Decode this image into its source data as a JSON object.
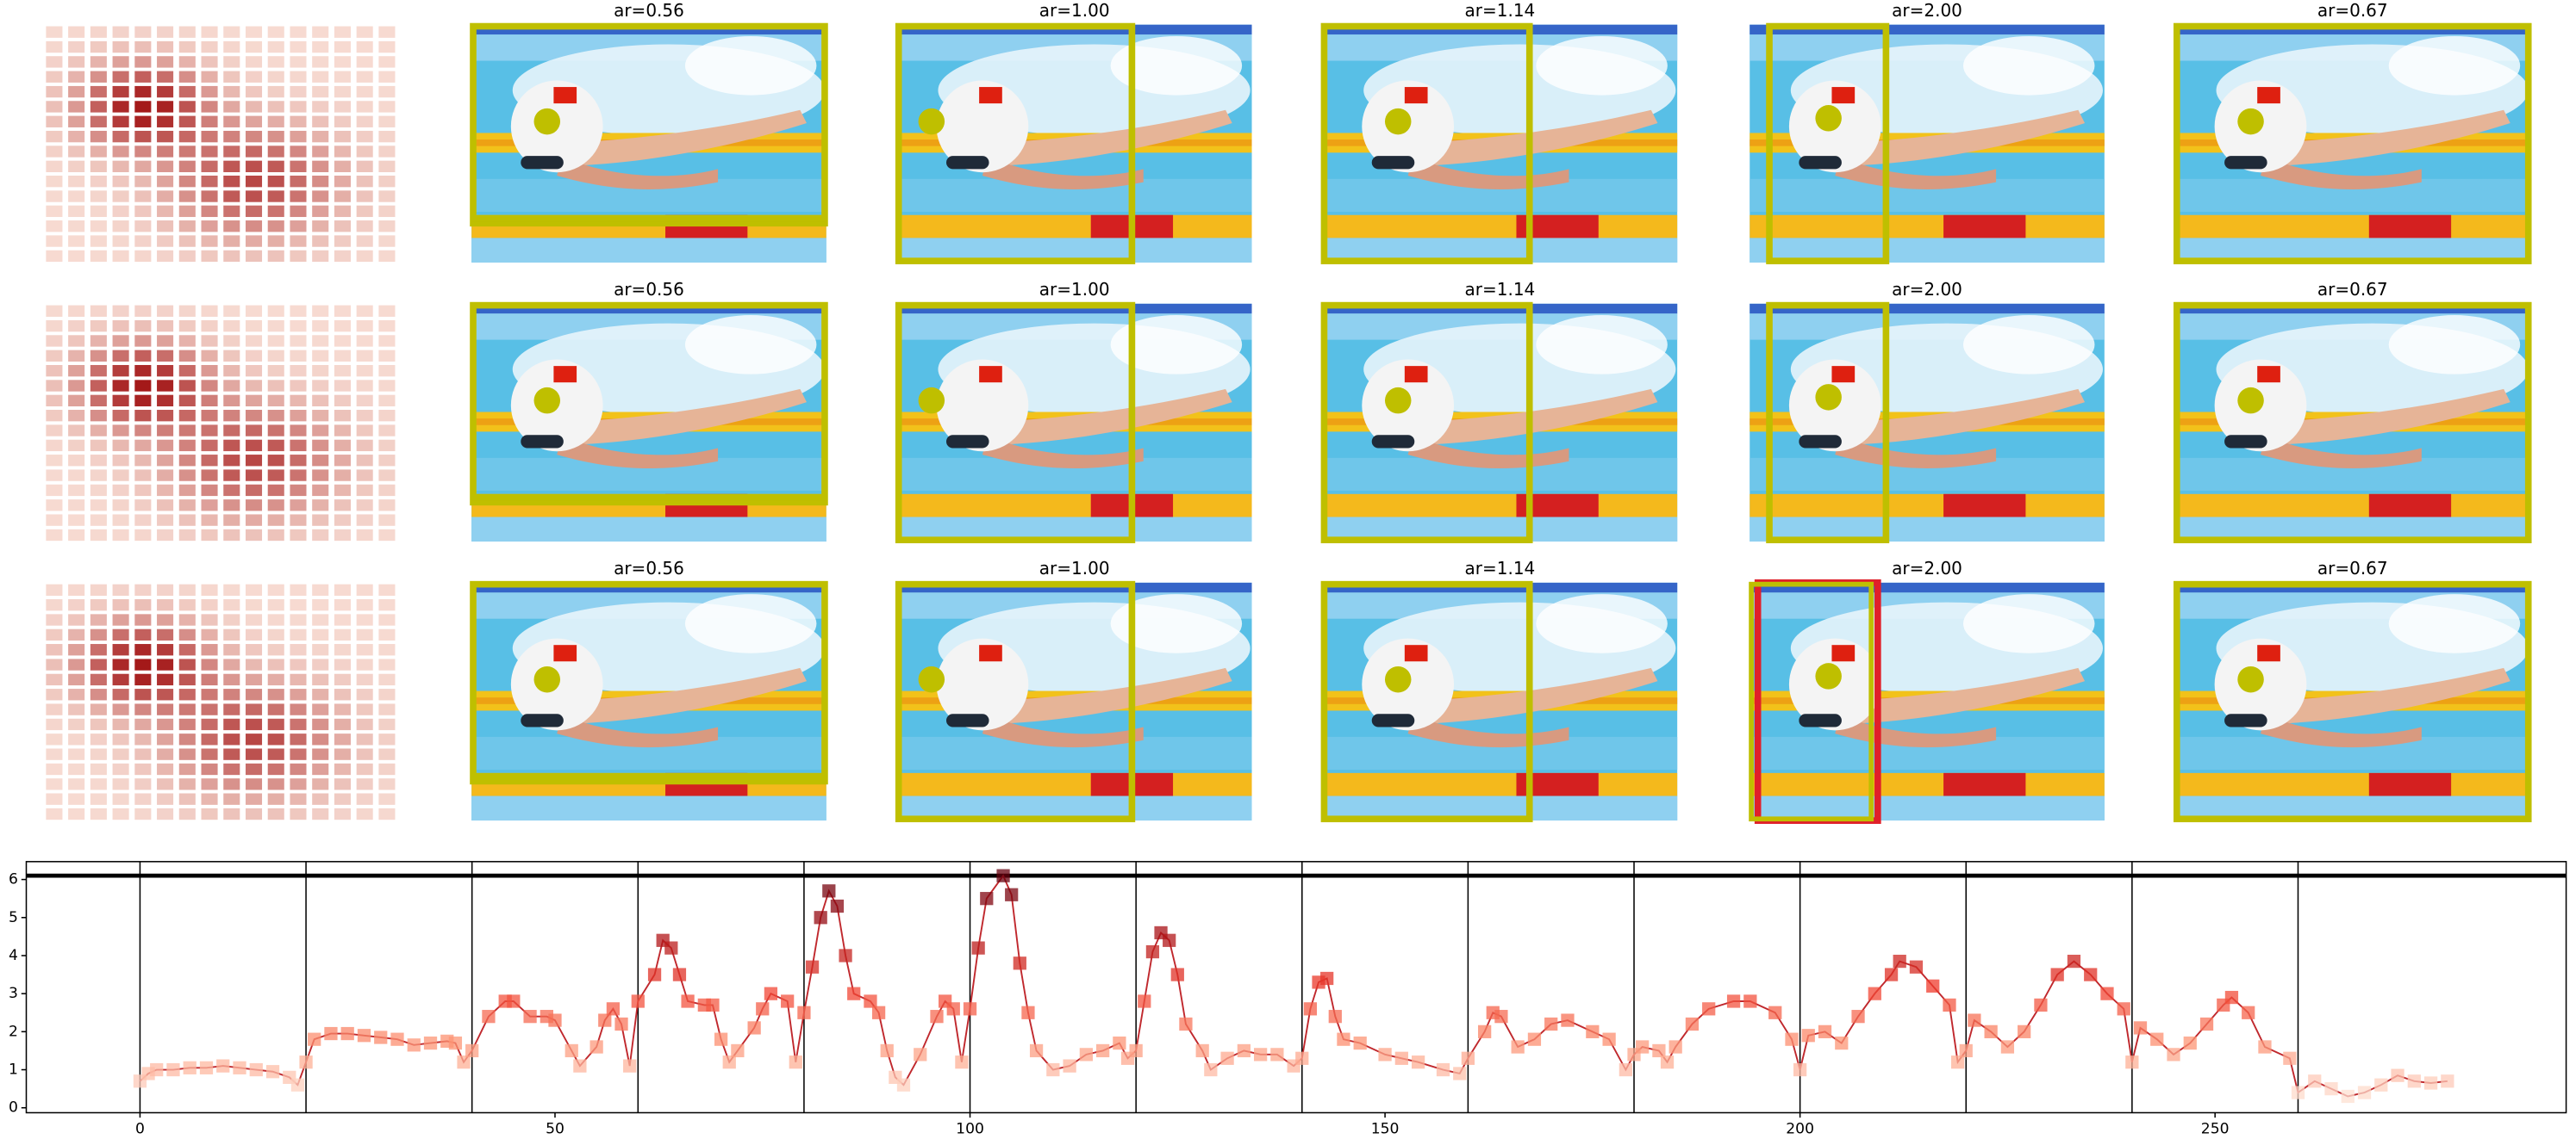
{
  "panels": {
    "titles": [
      [
        "ar=0.56",
        "ar=1.00",
        "ar=1.14",
        "ar=2.00",
        "ar=0.67"
      ],
      [
        "ar=0.56",
        "ar=1.00",
        "ar=1.14",
        "ar=2.00",
        "ar=0.67"
      ],
      [
        "ar=0.56",
        "ar=1.00",
        "ar=1.14",
        "ar=2.00",
        "ar=0.67"
      ]
    ]
  },
  "chart_data": {
    "type": "line",
    "line_color": "#c0282d",
    "colormap": "Reds",
    "markers": true,
    "x": [
      0,
      1,
      2,
      4,
      6,
      8,
      10,
      12,
      14,
      16,
      18,
      19,
      20,
      21,
      23,
      25,
      27,
      29,
      31,
      33,
      35,
      37,
      38,
      39,
      40,
      42,
      44,
      45,
      47,
      49,
      50,
      52,
      53,
      55,
      56,
      57,
      58,
      59,
      60,
      62,
      63,
      64,
      65,
      66,
      68,
      69,
      70,
      71,
      72,
      74,
      75,
      76,
      78,
      79,
      80,
      81,
      82,
      83,
      84,
      85,
      86,
      88,
      89,
      90,
      91,
      92,
      94,
      96,
      97,
      98,
      99,
      100,
      101,
      102,
      104,
      105,
      106,
      107,
      108,
      110,
      112,
      114,
      116,
      118,
      119,
      120,
      121,
      122,
      123,
      124,
      125,
      126,
      128,
      129,
      131,
      133,
      135,
      137,
      139,
      140,
      141,
      142,
      143,
      144,
      145,
      147,
      150,
      152,
      154,
      157,
      159,
      160,
      162,
      163,
      164,
      166,
      168,
      170,
      172,
      175,
      177,
      179,
      180,
      181,
      183,
      184,
      185,
      187,
      189,
      192,
      194,
      197,
      199,
      200,
      201,
      203,
      205,
      207,
      209,
      211,
      212,
      214,
      216,
      218,
      219,
      220,
      221,
      223,
      225,
      227,
      229,
      231,
      233,
      235,
      237,
      239,
      240,
      241,
      243,
      245,
      247,
      249,
      251,
      252,
      254,
      256,
      259,
      260,
      262,
      264,
      266,
      268,
      270,
      272,
      274,
      276,
      278
    ],
    "values": [
      0.7,
      0.9,
      1.0,
      1.0,
      1.05,
      1.05,
      1.1,
      1.05,
      1.0,
      0.95,
      0.8,
      0.6,
      1.2,
      1.8,
      1.95,
      1.95,
      1.9,
      1.85,
      1.8,
      1.65,
      1.7,
      1.75,
      1.7,
      1.2,
      1.5,
      2.4,
      2.8,
      2.8,
      2.4,
      2.4,
      2.3,
      1.5,
      1.1,
      1.6,
      2.3,
      2.6,
      2.2,
      1.1,
      2.8,
      3.5,
      4.4,
      4.2,
      3.5,
      2.8,
      2.7,
      2.7,
      1.8,
      1.2,
      1.5,
      2.1,
      2.6,
      3.0,
      2.8,
      1.2,
      2.5,
      3.7,
      5.0,
      5.7,
      5.3,
      4.0,
      3.0,
      2.8,
      2.5,
      1.5,
      0.8,
      0.6,
      1.4,
      2.4,
      2.8,
      2.6,
      1.2,
      2.6,
      4.2,
      5.5,
      6.1,
      5.6,
      3.8,
      2.5,
      1.5,
      1.0,
      1.1,
      1.4,
      1.5,
      1.7,
      1.3,
      1.5,
      2.8,
      4.1,
      4.6,
      4.4,
      3.5,
      2.2,
      1.5,
      1.0,
      1.3,
      1.5,
      1.4,
      1.4,
      1.1,
      1.3,
      2.6,
      3.3,
      3.4,
      2.4,
      1.8,
      1.7,
      1.4,
      1.3,
      1.2,
      1.0,
      0.9,
      1.3,
      2.0,
      2.5,
      2.4,
      1.6,
      1.8,
      2.2,
      2.3,
      2.0,
      1.8,
      1.0,
      1.4,
      1.6,
      1.5,
      1.2,
      1.6,
      2.2,
      2.6,
      2.8,
      2.8,
      2.5,
      1.8,
      1.0,
      1.9,
      2.0,
      1.7,
      2.4,
      3.0,
      3.5,
      3.85,
      3.7,
      3.2,
      2.7,
      1.2,
      1.5,
      2.3,
      2.0,
      1.6,
      2.0,
      2.7,
      3.5,
      3.85,
      3.5,
      3.0,
      2.6,
      1.2,
      2.1,
      1.8,
      1.4,
      1.7,
      2.2,
      2.7,
      2.9,
      2.5,
      1.6,
      1.3,
      0.4,
      0.7,
      0.5,
      0.3,
      0.4,
      0.6,
      0.85,
      0.7,
      0.65,
      0.7
    ],
    "xlim": [
      -13.7,
      292.3
    ],
    "ylim": [
      -0.13,
      6.47
    ],
    "xticks": [
      0,
      50,
      100,
      150,
      200,
      250
    ],
    "yticks": [
      0,
      1,
      2,
      3,
      4,
      5,
      6
    ],
    "vlines": [
      0,
      20,
      40,
      60,
      80,
      100,
      120,
      140,
      160,
      180,
      200,
      220,
      240,
      260
    ],
    "hline": 6.1
  }
}
